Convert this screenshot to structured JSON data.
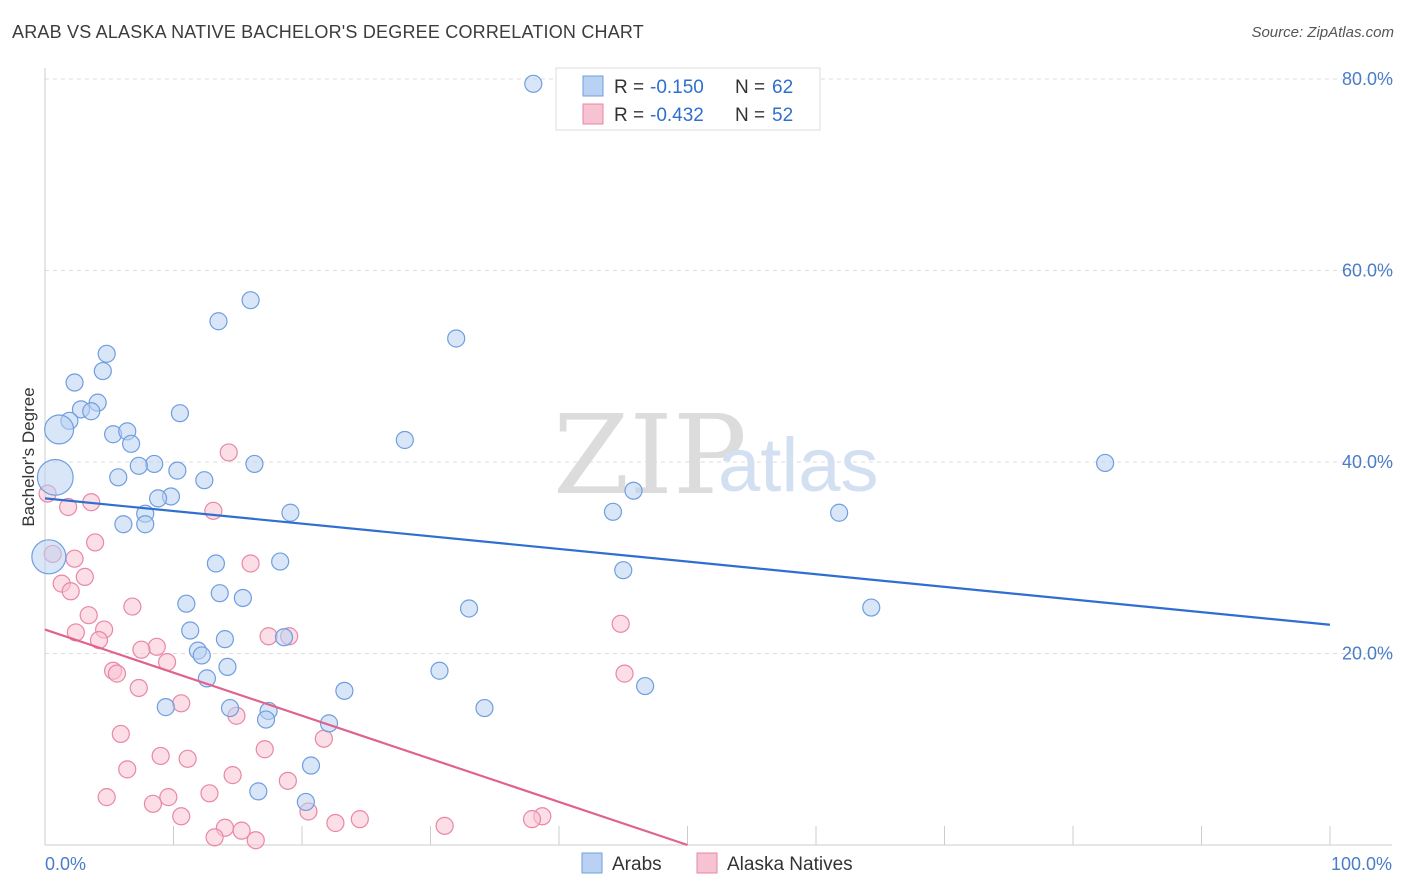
{
  "header": {
    "title": "ARAB VS ALASKA NATIVE BACHELOR'S DEGREE CORRELATION CHART",
    "source": "Source: ZipAtlas.com"
  },
  "watermark": {
    "zip": "ZIP",
    "atlas": "atlas"
  },
  "colors": {
    "arab_fill": "#b9d1f3",
    "arab_stroke": "#6f9ee0",
    "arab_line": "#2f6fd0",
    "native_fill": "#f7c2d2",
    "native_stroke": "#e987a7",
    "native_line": "#e0628d",
    "grid": "#dddddd",
    "tick_text": "#4a7cc9"
  },
  "chart_data": {
    "type": "scatter",
    "title": "ARAB VS ALASKA NATIVE BACHELOR'S DEGREE CORRELATION CHART",
    "xlabel": "",
    "ylabel": "Bachelor's Degree",
    "xlim": [
      0,
      100
    ],
    "ylim": [
      0,
      80
    ],
    "x_tick_labels": [
      "0.0%",
      "100.0%"
    ],
    "y_ticks": [
      20,
      40,
      60,
      80
    ],
    "y_tick_labels": [
      "20.0%",
      "40.0%",
      "60.0%",
      "80.0%"
    ],
    "grid": true,
    "legend_top": [
      {
        "r_label": "R =",
        "r_value": "-0.150",
        "n_label": "N =",
        "n_value": "62"
      },
      {
        "r_label": "R =",
        "r_value": "-0.432",
        "n_label": "N =",
        "n_value": "52"
      }
    ],
    "legend_bottom": [
      "Arabs",
      "Alaska Natives"
    ],
    "series": [
      {
        "name": "Arabs",
        "trend": {
          "x": [
            0,
            100
          ],
          "y": [
            36.2,
            23.0
          ]
        },
        "points": [
          {
            "x": 38.0,
            "y": 79.5
          },
          {
            "x": 16.0,
            "y": 56.9
          },
          {
            "x": 13.5,
            "y": 54.7
          },
          {
            "x": 32.0,
            "y": 52.9
          },
          {
            "x": 4.8,
            "y": 51.3
          },
          {
            "x": 4.5,
            "y": 49.5
          },
          {
            "x": 2.3,
            "y": 48.3
          },
          {
            "x": 4.1,
            "y": 46.2
          },
          {
            "x": 2.8,
            "y": 45.5
          },
          {
            "x": 3.6,
            "y": 45.3
          },
          {
            "x": 10.5,
            "y": 45.1
          },
          {
            "x": 1.9,
            "y": 44.3
          },
          {
            "x": 1.1,
            "y": 43.4,
            "s": 1.7
          },
          {
            "x": 5.3,
            "y": 42.9
          },
          {
            "x": 6.4,
            "y": 43.2
          },
          {
            "x": 28.0,
            "y": 42.3
          },
          {
            "x": 6.7,
            "y": 41.9
          },
          {
            "x": 8.5,
            "y": 39.8
          },
          {
            "x": 7.3,
            "y": 39.6
          },
          {
            "x": 16.3,
            "y": 39.8
          },
          {
            "x": 10.3,
            "y": 39.1
          },
          {
            "x": 5.7,
            "y": 38.4
          },
          {
            "x": 0.8,
            "y": 38.4,
            "s": 2.1
          },
          {
            "x": 12.4,
            "y": 38.1
          },
          {
            "x": 45.8,
            "y": 37.0
          },
          {
            "x": 82.5,
            "y": 39.9
          },
          {
            "x": 9.8,
            "y": 36.4
          },
          {
            "x": 8.8,
            "y": 36.2
          },
          {
            "x": 7.8,
            "y": 34.6
          },
          {
            "x": 19.1,
            "y": 34.7
          },
          {
            "x": 44.2,
            "y": 34.8
          },
          {
            "x": 61.8,
            "y": 34.7
          },
          {
            "x": 6.1,
            "y": 33.5
          },
          {
            "x": 7.8,
            "y": 33.5
          },
          {
            "x": 0.3,
            "y": 30.1,
            "s": 2.0
          },
          {
            "x": 13.3,
            "y": 29.4
          },
          {
            "x": 18.3,
            "y": 29.6
          },
          {
            "x": 45.0,
            "y": 28.7
          },
          {
            "x": 13.6,
            "y": 26.3
          },
          {
            "x": 15.4,
            "y": 25.8
          },
          {
            "x": 11.0,
            "y": 25.2
          },
          {
            "x": 33.0,
            "y": 24.7
          },
          {
            "x": 64.3,
            "y": 24.8
          },
          {
            "x": 11.3,
            "y": 22.4
          },
          {
            "x": 18.6,
            "y": 21.7
          },
          {
            "x": 11.9,
            "y": 20.3
          },
          {
            "x": 14.2,
            "y": 18.6
          },
          {
            "x": 30.7,
            "y": 18.2
          },
          {
            "x": 12.6,
            "y": 17.4
          },
          {
            "x": 46.7,
            "y": 16.6
          },
          {
            "x": 23.3,
            "y": 16.1
          },
          {
            "x": 9.4,
            "y": 14.4
          },
          {
            "x": 14.4,
            "y": 14.3
          },
          {
            "x": 34.2,
            "y": 14.3
          },
          {
            "x": 17.4,
            "y": 14.0
          },
          {
            "x": 17.2,
            "y": 13.1
          },
          {
            "x": 22.1,
            "y": 12.7
          },
          {
            "x": 20.7,
            "y": 8.3
          },
          {
            "x": 16.6,
            "y": 5.6
          },
          {
            "x": 20.3,
            "y": 4.5
          },
          {
            "x": 12.2,
            "y": 19.8
          },
          {
            "x": 14.0,
            "y": 21.5
          }
        ]
      },
      {
        "name": "Alaska Natives",
        "trend": {
          "x": [
            0,
            50
          ],
          "y": [
            22.5,
            0
          ]
        },
        "points": [
          {
            "x": 14.3,
            "y": 41.0
          },
          {
            "x": 0.2,
            "y": 36.7
          },
          {
            "x": 3.6,
            "y": 35.8
          },
          {
            "x": 1.8,
            "y": 35.3
          },
          {
            "x": 13.1,
            "y": 34.9
          },
          {
            "x": 3.9,
            "y": 31.6
          },
          {
            "x": 0.6,
            "y": 30.4
          },
          {
            "x": 2.3,
            "y": 29.9
          },
          {
            "x": 16.0,
            "y": 29.4
          },
          {
            "x": 3.1,
            "y": 28.0
          },
          {
            "x": 1.3,
            "y": 27.3
          },
          {
            "x": 2.0,
            "y": 26.5
          },
          {
            "x": 6.8,
            "y": 24.9
          },
          {
            "x": 3.4,
            "y": 24.0
          },
          {
            "x": 4.6,
            "y": 22.5
          },
          {
            "x": 2.4,
            "y": 22.2
          },
          {
            "x": 17.4,
            "y": 21.8
          },
          {
            "x": 19.0,
            "y": 21.8
          },
          {
            "x": 44.8,
            "y": 23.1
          },
          {
            "x": 4.2,
            "y": 21.4
          },
          {
            "x": 8.7,
            "y": 20.7
          },
          {
            "x": 7.5,
            "y": 20.4
          },
          {
            "x": 9.5,
            "y": 19.1
          },
          {
            "x": 5.3,
            "y": 18.2
          },
          {
            "x": 5.6,
            "y": 17.9
          },
          {
            "x": 45.1,
            "y": 17.9
          },
          {
            "x": 7.3,
            "y": 16.4
          },
          {
            "x": 10.6,
            "y": 14.8
          },
          {
            "x": 14.9,
            "y": 13.5
          },
          {
            "x": 5.9,
            "y": 11.6
          },
          {
            "x": 21.7,
            "y": 11.1
          },
          {
            "x": 17.1,
            "y": 10.0
          },
          {
            "x": 9.0,
            "y": 9.3
          },
          {
            "x": 11.1,
            "y": 9.0
          },
          {
            "x": 6.4,
            "y": 7.9
          },
          {
            "x": 14.6,
            "y": 7.3
          },
          {
            "x": 18.9,
            "y": 6.7
          },
          {
            "x": 12.8,
            "y": 5.4
          },
          {
            "x": 4.8,
            "y": 5.0
          },
          {
            "x": 9.6,
            "y": 5.0
          },
          {
            "x": 8.4,
            "y": 4.3
          },
          {
            "x": 20.5,
            "y": 3.5
          },
          {
            "x": 10.6,
            "y": 3.0
          },
          {
            "x": 38.7,
            "y": 3.0
          },
          {
            "x": 24.5,
            "y": 2.7
          },
          {
            "x": 22.6,
            "y": 2.3
          },
          {
            "x": 37.9,
            "y": 2.7
          },
          {
            "x": 31.1,
            "y": 2.0
          },
          {
            "x": 14.0,
            "y": 1.8
          },
          {
            "x": 15.3,
            "y": 1.5
          },
          {
            "x": 13.2,
            "y": 0.8
          },
          {
            "x": 16.4,
            "y": 0.5
          }
        ]
      }
    ]
  }
}
